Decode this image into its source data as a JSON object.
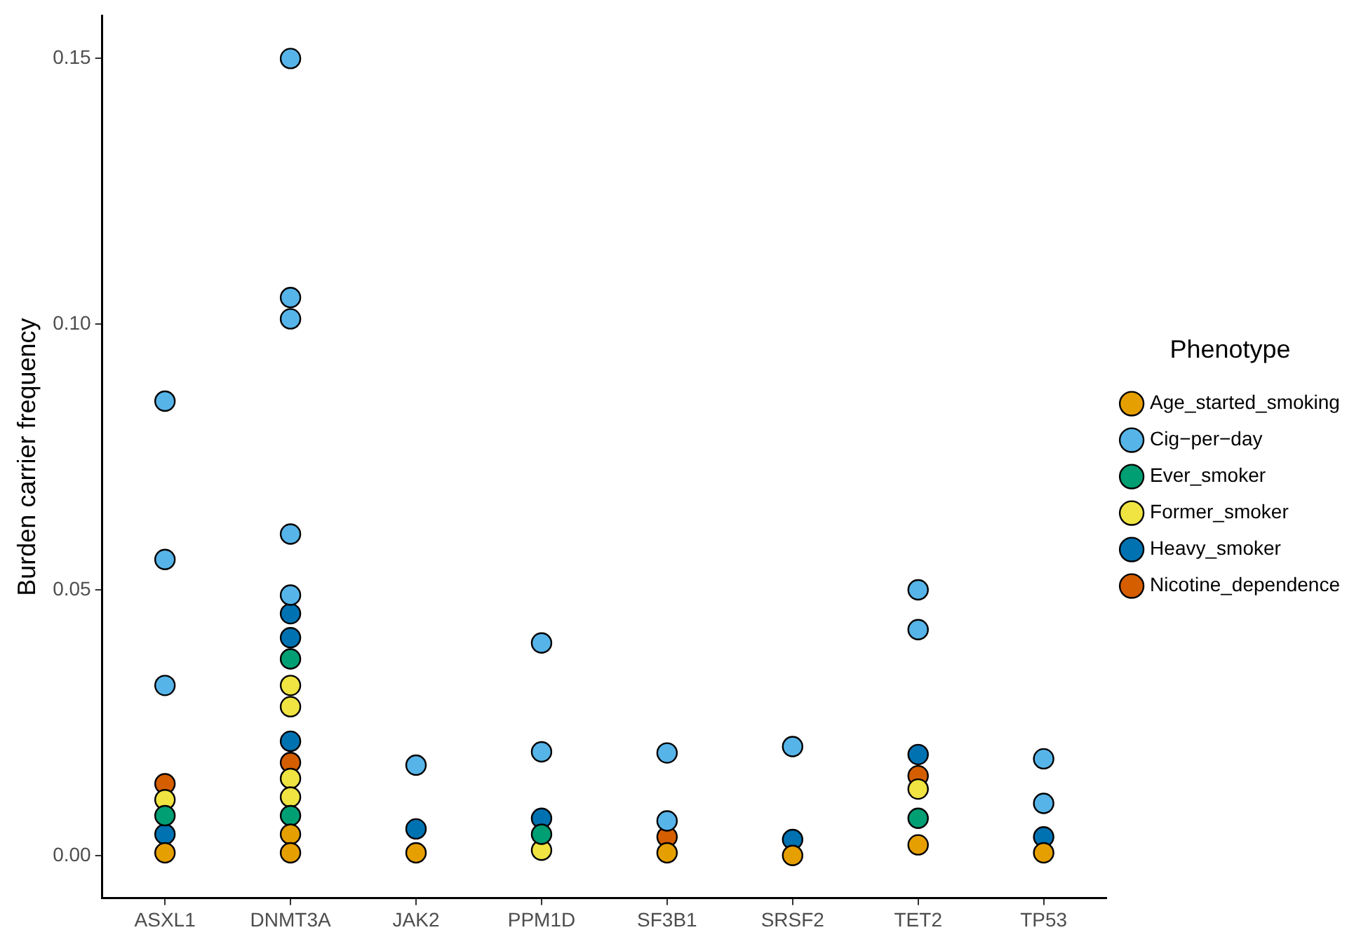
{
  "chart_data": {
    "type": "scatter",
    "ylabel": "Burden carrier frequency",
    "legend_title": "Phenotype",
    "legend": "right",
    "grid": false,
    "marker": "circle",
    "categories": [
      "ASXL1",
      "DNMT3A",
      "JAK2",
      "PPM1D",
      "SF3B1",
      "SRSF2",
      "TET2",
      "TP53"
    ],
    "ylim": [
      -0.008,
      0.158
    ],
    "yticks": [
      {
        "value": 0,
        "label": "0.00"
      },
      {
        "value": 0.05,
        "label": "0.05"
      },
      {
        "value": 0.1,
        "label": "0.10"
      },
      {
        "value": 0.15,
        "label": "0.15"
      }
    ],
    "series": [
      {
        "name": "Age_started_smoking",
        "color": "#e69f00",
        "x": [
          "ASXL1",
          "DNMT3A",
          "DNMT3A",
          "JAK2",
          "SF3B1",
          "SRSF2",
          "TET2",
          "TP53"
        ],
        "values": [
          0.0005,
          0.004,
          0.0005,
          0.0005,
          0.0005,
          0,
          0.002,
          0.0005
        ]
      },
      {
        "name": "Cig−per−day",
        "color": "#56b4e9",
        "x": [
          "ASXL1",
          "ASXL1",
          "ASXL1",
          "DNMT3A",
          "DNMT3A",
          "DNMT3A",
          "DNMT3A",
          "DNMT3A",
          "JAK2",
          "PPM1D",
          "PPM1D",
          "SF3B1",
          "SF3B1",
          "SRSF2",
          "TET2",
          "TET2",
          "TP53",
          "TP53"
        ],
        "values": [
          0.0855,
          0.0557,
          0.032,
          0.15,
          0.105,
          0.101,
          0.0605,
          0.049,
          0.017,
          0.04,
          0.0195,
          0.0193,
          0.0065,
          0.0205,
          0.05,
          0.0425,
          0.0182,
          0.0098
        ]
      },
      {
        "name": "Ever_smoker",
        "color": "#009e73",
        "x": [
          "ASXL1",
          "DNMT3A",
          "DNMT3A",
          "PPM1D",
          "TET2"
        ],
        "values": [
          0.0075,
          0.037,
          0.0075,
          0.004,
          0.007
        ]
      },
      {
        "name": "Former_smoker",
        "color": "#f0e442",
        "x": [
          "ASXL1",
          "DNMT3A",
          "DNMT3A",
          "DNMT3A",
          "DNMT3A",
          "PPM1D",
          "TET2"
        ],
        "values": [
          0.0105,
          0.032,
          0.028,
          0.0145,
          0.011,
          0.001,
          0.0125
        ]
      },
      {
        "name": "Heavy_smoker",
        "color": "#0072b2",
        "x": [
          "ASXL1",
          "DNMT3A",
          "DNMT3A",
          "DNMT3A",
          "JAK2",
          "PPM1D",
          "SRSF2",
          "TET2",
          "TP53"
        ],
        "values": [
          0.004,
          0.0455,
          0.041,
          0.0215,
          0.005,
          0.007,
          0.003,
          0.019,
          0.0035
        ]
      },
      {
        "name": "Nicotine_dependence",
        "color": "#d55e00",
        "x": [
          "ASXL1",
          "DNMT3A",
          "SF3B1",
          "TET2"
        ],
        "values": [
          0.0135,
          0.0175,
          0.0035,
          0.015
        ]
      }
    ]
  }
}
